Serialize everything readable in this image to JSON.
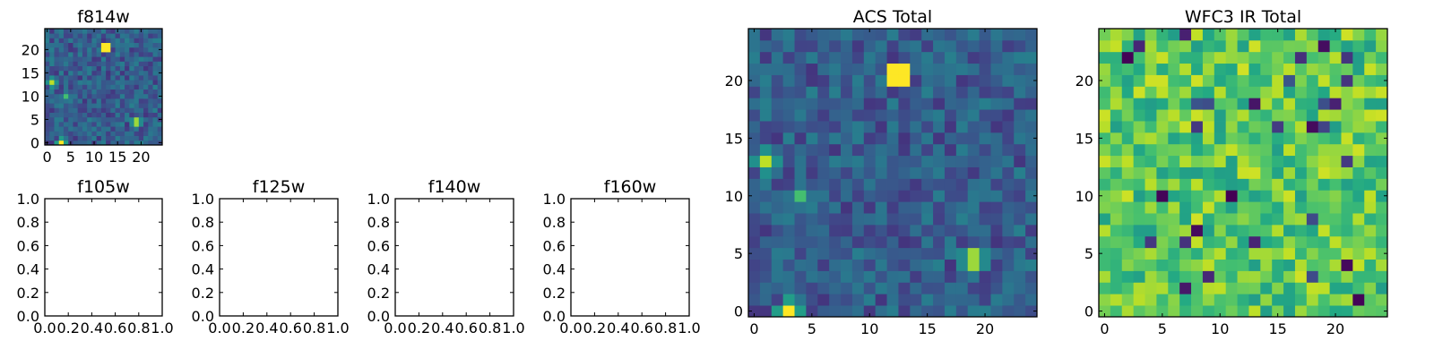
{
  "chart_data": [
    {
      "type": "heatmap",
      "title": "f814w",
      "xlabel": "",
      "ylabel": "",
      "grid_size": 25,
      "origin": "lower",
      "colormap": "viridis",
      "xlim": [
        -0.5,
        24.5
      ],
      "ylim": [
        -0.5,
        24.5
      ],
      "xticks": [
        "0",
        "5",
        "10",
        "15",
        "20"
      ],
      "yticks": [
        "0",
        "5",
        "10",
        "15",
        "20"
      ],
      "grid": false,
      "peaks": [
        {
          "x": 12.5,
          "y": 20.5,
          "value": 1.0
        },
        {
          "x": 3,
          "y": 0,
          "value": 1.0
        },
        {
          "x": 1,
          "y": 13,
          "value": 0.9
        },
        {
          "x": 19,
          "y": 4.5,
          "value": 0.85
        },
        {
          "x": 4,
          "y": 10,
          "value": 0.7
        }
      ]
    },
    {
      "type": "heatmap",
      "title": "ACS Total",
      "xlabel": "",
      "ylabel": "",
      "grid_size": 25,
      "origin": "lower",
      "colormap": "viridis",
      "xlim": [
        -0.5,
        24.5
      ],
      "ylim": [
        -0.5,
        24.5
      ],
      "xticks": [
        "0",
        "5",
        "10",
        "15",
        "20"
      ],
      "yticks": [
        "0",
        "5",
        "10",
        "15",
        "20"
      ],
      "grid": false,
      "peaks": [
        {
          "x": 12.5,
          "y": 20.5,
          "value": 1.0
        },
        {
          "x": 3,
          "y": 0,
          "value": 1.0
        },
        {
          "x": 1,
          "y": 13,
          "value": 0.9
        },
        {
          "x": 19,
          "y": 4.5,
          "value": 0.85
        },
        {
          "x": 4,
          "y": 10,
          "value": 0.7
        }
      ]
    },
    {
      "type": "heatmap",
      "title": "WFC3 IR Total",
      "xlabel": "",
      "ylabel": "",
      "grid_size": 25,
      "origin": "lower",
      "colormap": "viridis",
      "xlim": [
        -0.5,
        24.5
      ],
      "ylim": [
        -0.5,
        24.5
      ],
      "xticks": [
        "0",
        "5",
        "10",
        "15",
        "20"
      ],
      "yticks": [
        "0",
        "5",
        "10",
        "15",
        "20"
      ],
      "grid": false,
      "note_values": "mostly high (green/yellow) noise"
    },
    {
      "type": "empty",
      "title": "f105w",
      "xlim": [
        0.0,
        1.0
      ],
      "ylim": [
        0.0,
        1.0
      ],
      "xticks": [
        "0.0",
        "0.2",
        "0.4",
        "0.6",
        "0.8",
        "1.0"
      ],
      "yticks": [
        "0.0",
        "0.2",
        "0.4",
        "0.6",
        "0.8",
        "1.0"
      ]
    },
    {
      "type": "empty",
      "title": "f125w",
      "xlim": [
        0.0,
        1.0
      ],
      "ylim": [
        0.0,
        1.0
      ],
      "xticks": [
        "0.0",
        "0.2",
        "0.4",
        "0.6",
        "0.8",
        "1.0"
      ],
      "yticks": [
        "0.0",
        "0.2",
        "0.4",
        "0.6",
        "0.8",
        "1.0"
      ]
    },
    {
      "type": "empty",
      "title": "f140w",
      "xlim": [
        0.0,
        1.0
      ],
      "ylim": [
        0.0,
        1.0
      ],
      "xticks": [
        "0.0",
        "0.2",
        "0.4",
        "0.6",
        "0.8",
        "1.0"
      ],
      "yticks": [
        "0.0",
        "0.2",
        "0.4",
        "0.6",
        "0.8",
        "1.0"
      ]
    },
    {
      "type": "empty",
      "title": "f160w",
      "xlim": [
        0.0,
        1.0
      ],
      "ylim": [
        0.0,
        1.0
      ],
      "xticks": [
        "0.0",
        "0.2",
        "0.4",
        "0.6",
        "0.8",
        "1.0"
      ],
      "yticks": [
        "0.0",
        "0.2",
        "0.4",
        "0.6",
        "0.8",
        "1.0"
      ]
    }
  ]
}
